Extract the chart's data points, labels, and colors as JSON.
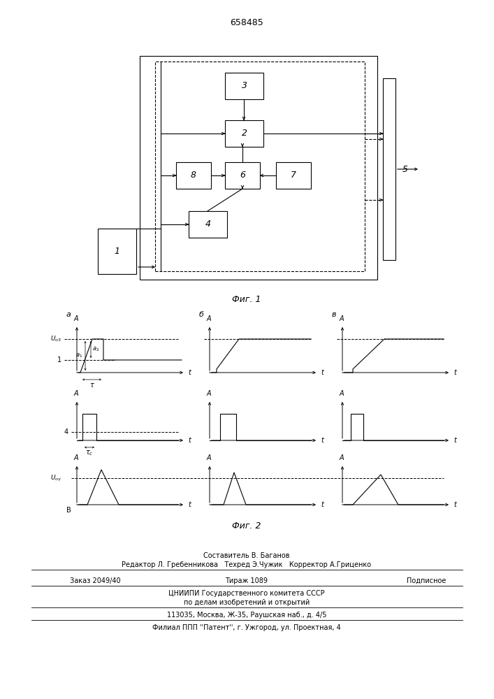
{
  "patent_number": "658485",
  "fig1_caption": "Фиг. 1",
  "fig2_caption": "Фиг. 2",
  "footer_line0": "Составитель В. Баганов",
  "footer_line1": "Редактор Л. Гребенникова   Техред Э.Чужик   Корректор А.Гриценко",
  "footer_line2a": "Заказ 2049/40",
  "footer_line2b": "Тираж 1089",
  "footer_line2c": "Подписное",
  "footer_line3": "ЦНИИПИ Государственного комитета СССР",
  "footer_line4": "по делам изобретений и открытий",
  "footer_line5": "113035, Москва, Ж-35, Раушская наб., д. 4/5",
  "footer_line6": "Филиал ППП ''Патент'', г. Ужгород, ул. Проектная, 4",
  "bg_color": "#ffffff",
  "line_color": "#000000"
}
